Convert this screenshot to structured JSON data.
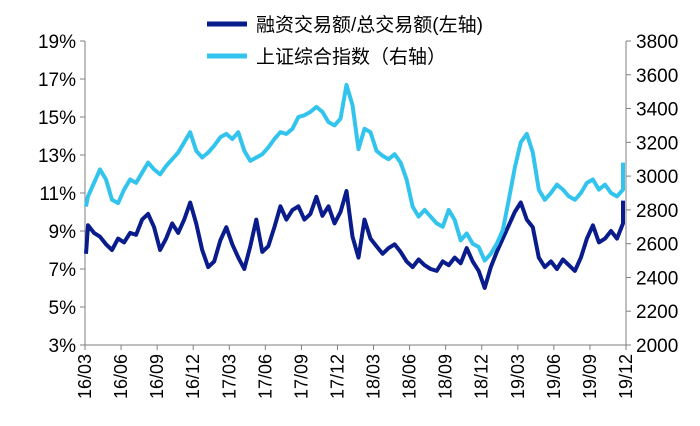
{
  "chart_data": {
    "type": "line",
    "title": "",
    "xlabel": "",
    "x_tick_labels": [
      "16/03",
      "16/06",
      "16/09",
      "16/12",
      "17/03",
      "17/06",
      "17/09",
      "17/12",
      "18/03",
      "18/06",
      "18/09",
      "18/12",
      "19/03",
      "19/06",
      "19/09",
      "19/12"
    ],
    "x_range": [
      "16/03",
      "19/12"
    ],
    "y_left": {
      "label": "",
      "ticks": [
        "3%",
        "5%",
        "7%",
        "9%",
        "11%",
        "13%",
        "15%",
        "17%",
        "19%"
      ],
      "range": [
        3,
        19
      ],
      "unit": "%"
    },
    "y_right": {
      "label": "",
      "ticks": [
        "2000",
        "2200",
        "2400",
        "2600",
        "2800",
        "3000",
        "3200",
        "3400",
        "3600",
        "3800"
      ],
      "range": [
        2000,
        3800
      ]
    },
    "grid": false,
    "legend": {
      "placement": "top-center"
    },
    "colors": {
      "margin_ratio": "#0a1c8c",
      "sse_index": "#33c4ee"
    },
    "series": [
      {
        "name": "融资交易额/总交易额(左轴)",
        "axis": "left",
        "color": "#0a1c8c",
        "points": [
          [
            "16/03",
            7.8
          ],
          [
            "16/03",
            9.3
          ],
          [
            "16/04",
            8.9
          ],
          [
            "16/04",
            8.7
          ],
          [
            "16/05",
            8.3
          ],
          [
            "16/05",
            8.0
          ],
          [
            "16/06",
            8.6
          ],
          [
            "16/06",
            8.4
          ],
          [
            "16/07",
            8.9
          ],
          [
            "16/07",
            8.8
          ],
          [
            "16/08",
            9.6
          ],
          [
            "16/08",
            9.9
          ],
          [
            "16/09",
            9.2
          ],
          [
            "16/09",
            8.0
          ],
          [
            "16/10",
            8.6
          ],
          [
            "16/10",
            9.4
          ],
          [
            "16/11",
            8.9
          ],
          [
            "16/11",
            9.6
          ],
          [
            "16/12",
            10.5
          ],
          [
            "16/12",
            9.4
          ],
          [
            "17/01",
            8.0
          ],
          [
            "17/01",
            7.1
          ],
          [
            "17/02",
            7.4
          ],
          [
            "17/02",
            8.5
          ],
          [
            "17/03",
            9.2
          ],
          [
            "17/03",
            8.3
          ],
          [
            "17/04",
            7.6
          ],
          [
            "17/04",
            7.0
          ],
          [
            "17/05",
            8.2
          ],
          [
            "17/05",
            9.6
          ],
          [
            "17/06",
            7.9
          ],
          [
            "17/06",
            8.2
          ],
          [
            "17/07",
            9.2
          ],
          [
            "17/07",
            10.3
          ],
          [
            "17/08",
            9.6
          ],
          [
            "17/08",
            10.1
          ],
          [
            "17/09",
            10.3
          ],
          [
            "17/09",
            9.6
          ],
          [
            "17/10",
            9.9
          ],
          [
            "17/10",
            10.8
          ],
          [
            "17/11",
            9.8
          ],
          [
            "17/11",
            10.3
          ],
          [
            "17/12",
            9.4
          ],
          [
            "17/12",
            10.0
          ],
          [
            "18/01",
            11.1
          ],
          [
            "18/01",
            8.7
          ],
          [
            "18/02",
            7.6
          ],
          [
            "18/02",
            9.6
          ],
          [
            "18/03",
            8.6
          ],
          [
            "18/03",
            8.2
          ],
          [
            "18/04",
            7.8
          ],
          [
            "18/04",
            8.1
          ],
          [
            "18/05",
            8.3
          ],
          [
            "18/05",
            7.9
          ],
          [
            "18/06",
            7.4
          ],
          [
            "18/06",
            7.1
          ],
          [
            "18/07",
            7.5
          ],
          [
            "18/07",
            7.2
          ],
          [
            "18/08",
            7.0
          ],
          [
            "18/08",
            6.9
          ],
          [
            "18/09",
            7.4
          ],
          [
            "18/09",
            7.2
          ],
          [
            "18/10",
            7.6
          ],
          [
            "18/10",
            7.3
          ],
          [
            "18/11",
            8.1
          ],
          [
            "18/11",
            7.4
          ],
          [
            "18/12",
            6.9
          ],
          [
            "18/12",
            6.0
          ],
          [
            "19/01",
            7.1
          ],
          [
            "19/01",
            7.9
          ],
          [
            "19/02",
            8.6
          ],
          [
            "19/02",
            9.3
          ],
          [
            "19/03",
            10.0
          ],
          [
            "19/03",
            10.5
          ],
          [
            "19/04",
            9.6
          ],
          [
            "19/04",
            9.2
          ],
          [
            "19/05",
            7.6
          ],
          [
            "19/05",
            7.1
          ],
          [
            "19/06",
            7.4
          ],
          [
            "19/06",
            7.0
          ],
          [
            "19/07",
            7.5
          ],
          [
            "19/07",
            7.2
          ],
          [
            "19/08",
            6.9
          ],
          [
            "19/08",
            7.6
          ],
          [
            "19/09",
            8.6
          ],
          [
            "19/09",
            9.3
          ],
          [
            "19/10",
            8.4
          ],
          [
            "19/10",
            8.6
          ],
          [
            "19/11",
            9.0
          ],
          [
            "19/11",
            8.6
          ],
          [
            "19/12",
            9.4
          ],
          [
            "19/12",
            10.0
          ],
          [
            "20/01",
            10.6
          ]
        ]
      },
      {
        "name": "上证综合指数（右轴）",
        "axis": "right",
        "color": "#33c4ee",
        "points": [
          [
            "16/03",
            2820
          ],
          [
            "16/03",
            2880
          ],
          [
            "16/04",
            2960
          ],
          [
            "16/04",
            3040
          ],
          [
            "16/05",
            2980
          ],
          [
            "16/05",
            2860
          ],
          [
            "16/06",
            2840
          ],
          [
            "16/06",
            2920
          ],
          [
            "16/07",
            2980
          ],
          [
            "16/07",
            2960
          ],
          [
            "16/08",
            3020
          ],
          [
            "16/08",
            3080
          ],
          [
            "16/09",
            3040
          ],
          [
            "16/09",
            3010
          ],
          [
            "16/10",
            3060
          ],
          [
            "16/10",
            3100
          ],
          [
            "16/11",
            3140
          ],
          [
            "16/11",
            3200
          ],
          [
            "16/12",
            3260
          ],
          [
            "16/12",
            3150
          ],
          [
            "17/01",
            3110
          ],
          [
            "17/01",
            3140
          ],
          [
            "17/02",
            3180
          ],
          [
            "17/02",
            3230
          ],
          [
            "17/03",
            3250
          ],
          [
            "17/03",
            3220
          ],
          [
            "17/04",
            3260
          ],
          [
            "17/04",
            3150
          ],
          [
            "17/05",
            3090
          ],
          [
            "17/05",
            3110
          ],
          [
            "17/06",
            3130
          ],
          [
            "17/06",
            3170
          ],
          [
            "17/07",
            3220
          ],
          [
            "17/07",
            3260
          ],
          [
            "17/08",
            3250
          ],
          [
            "17/08",
            3280
          ],
          [
            "17/09",
            3350
          ],
          [
            "17/09",
            3360
          ],
          [
            "17/10",
            3380
          ],
          [
            "17/10",
            3410
          ],
          [
            "17/11",
            3380
          ],
          [
            "17/11",
            3320
          ],
          [
            "17/12",
            3300
          ],
          [
            "17/12",
            3340
          ],
          [
            "18/01",
            3540
          ],
          [
            "18/01",
            3420
          ],
          [
            "18/02",
            3160
          ],
          [
            "18/02",
            3280
          ],
          [
            "18/03",
            3260
          ],
          [
            "18/03",
            3150
          ],
          [
            "18/04",
            3120
          ],
          [
            "18/04",
            3100
          ],
          [
            "18/05",
            3130
          ],
          [
            "18/05",
            3080
          ],
          [
            "18/06",
            2980
          ],
          [
            "18/06",
            2820
          ],
          [
            "18/07",
            2760
          ],
          [
            "18/07",
            2800
          ],
          [
            "18/08",
            2760
          ],
          [
            "18/08",
            2720
          ],
          [
            "18/09",
            2700
          ],
          [
            "18/09",
            2800
          ],
          [
            "18/10",
            2740
          ],
          [
            "18/10",
            2620
          ],
          [
            "18/11",
            2660
          ],
          [
            "18/11",
            2600
          ],
          [
            "18/12",
            2580
          ],
          [
            "18/12",
            2500
          ],
          [
            "19/01",
            2540
          ],
          [
            "19/01",
            2600
          ],
          [
            "19/02",
            2680
          ],
          [
            "19/02",
            2860
          ],
          [
            "19/03",
            3050
          ],
          [
            "19/03",
            3200
          ],
          [
            "19/04",
            3250
          ],
          [
            "19/04",
            3140
          ],
          [
            "19/05",
            2920
          ],
          [
            "19/05",
            2860
          ],
          [
            "19/06",
            2900
          ],
          [
            "19/06",
            2950
          ],
          [
            "19/07",
            2920
          ],
          [
            "19/07",
            2880
          ],
          [
            "19/08",
            2860
          ],
          [
            "19/08",
            2900
          ],
          [
            "19/09",
            2960
          ],
          [
            "19/09",
            2980
          ],
          [
            "19/10",
            2920
          ],
          [
            "19/10",
            2950
          ],
          [
            "19/11",
            2900
          ],
          [
            "19/11",
            2880
          ],
          [
            "19/12",
            2920
          ],
          [
            "19/12",
            3000
          ],
          [
            "20/01",
            3080
          ]
        ]
      }
    ]
  }
}
